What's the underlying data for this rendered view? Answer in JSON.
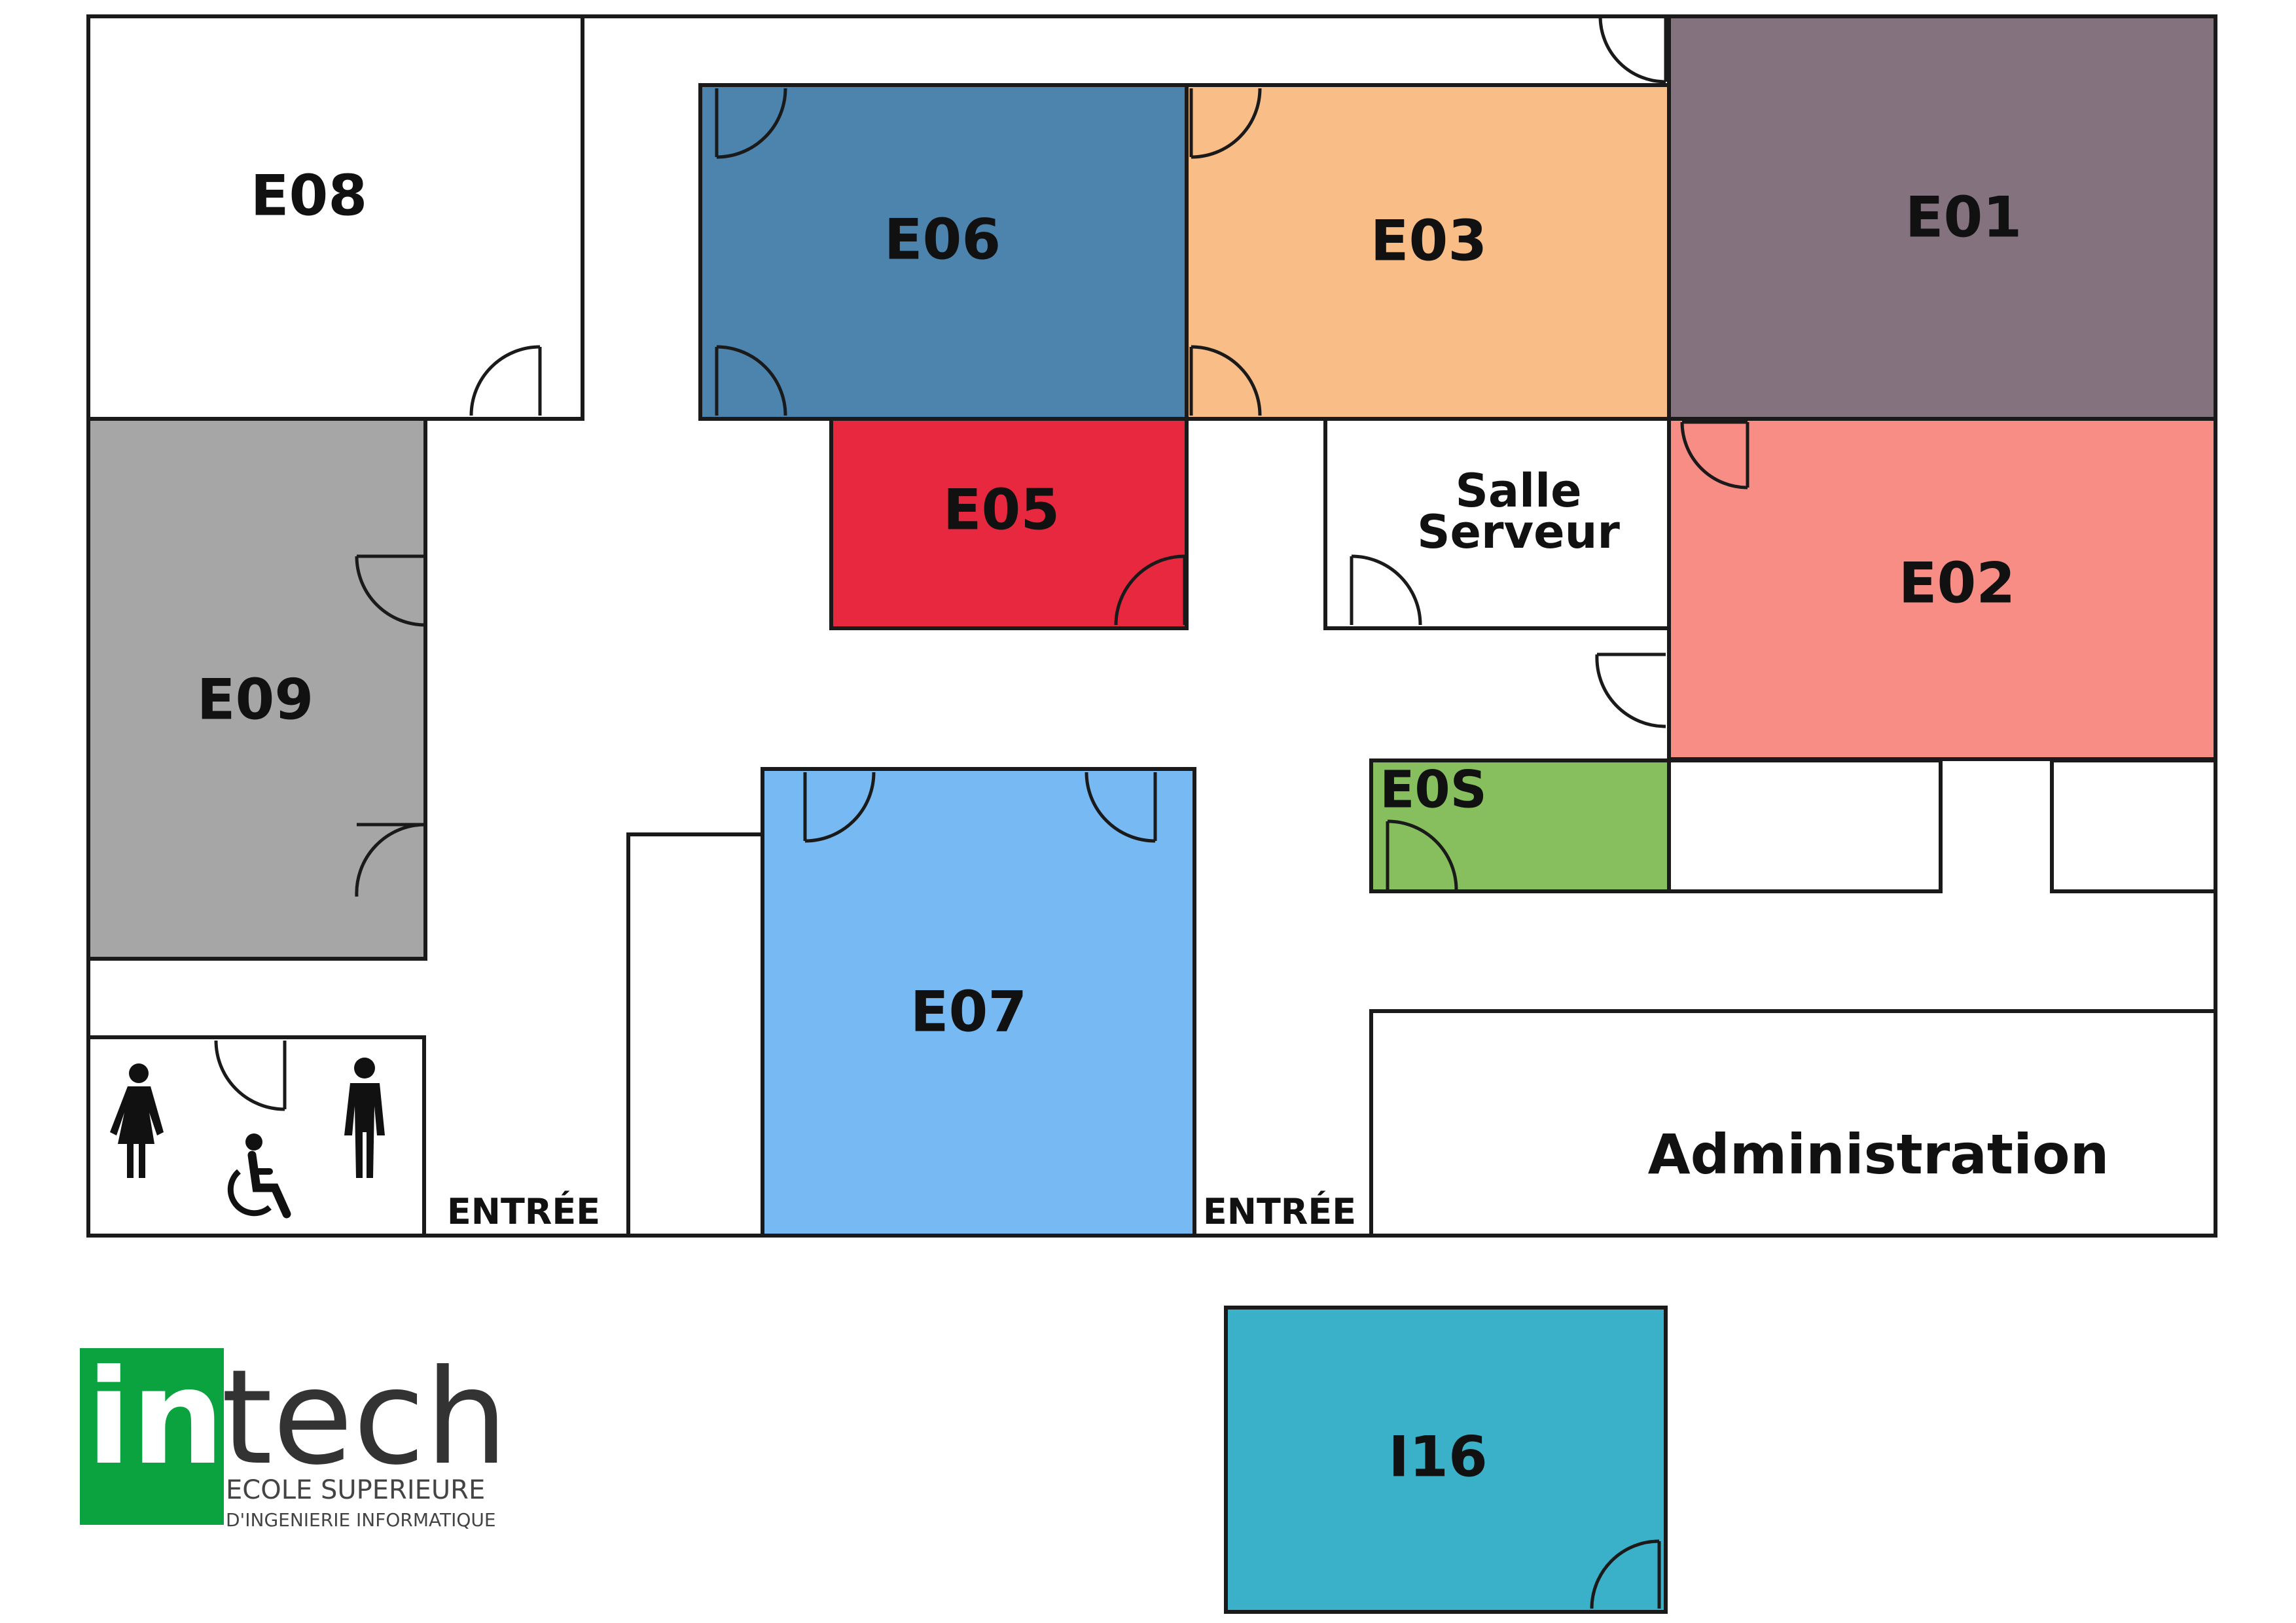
{
  "rooms": {
    "e08": {
      "label": "E08"
    },
    "e06": {
      "label": "E06",
      "color": "#4d84ad"
    },
    "e03": {
      "label": "E03",
      "color": "#f9bd87"
    },
    "e01": {
      "label": "E01",
      "color": "#84727f"
    },
    "e09": {
      "label": "E09",
      "color": "#a6a6a6"
    },
    "e05": {
      "label": "E05",
      "color": "#e8283f"
    },
    "salle_serveur": {
      "line1": "Salle",
      "line2": "Serveur"
    },
    "e02": {
      "label": "E02",
      "color": "#f88d85"
    },
    "e0s": {
      "label": "E0S",
      "color": "#87bf5e"
    },
    "e07": {
      "label": "E07",
      "color": "#76b9f3"
    },
    "administration": {
      "label": "Administration"
    },
    "i16": {
      "label": "I16",
      "color": "#3bb0c9"
    }
  },
  "entrances": [
    {
      "label": "ENTRÉE"
    },
    {
      "label": "ENTRÉE"
    }
  ],
  "restroom_icons": [
    "woman-icon",
    "wheelchair-icon",
    "man-icon"
  ],
  "logo": {
    "in": "in",
    "tech": "tech",
    "line1": "ECOLE SUPERIEURE",
    "line2": "D'INGENIERIE INFORMATIQUE",
    "green": "#0aa340"
  }
}
